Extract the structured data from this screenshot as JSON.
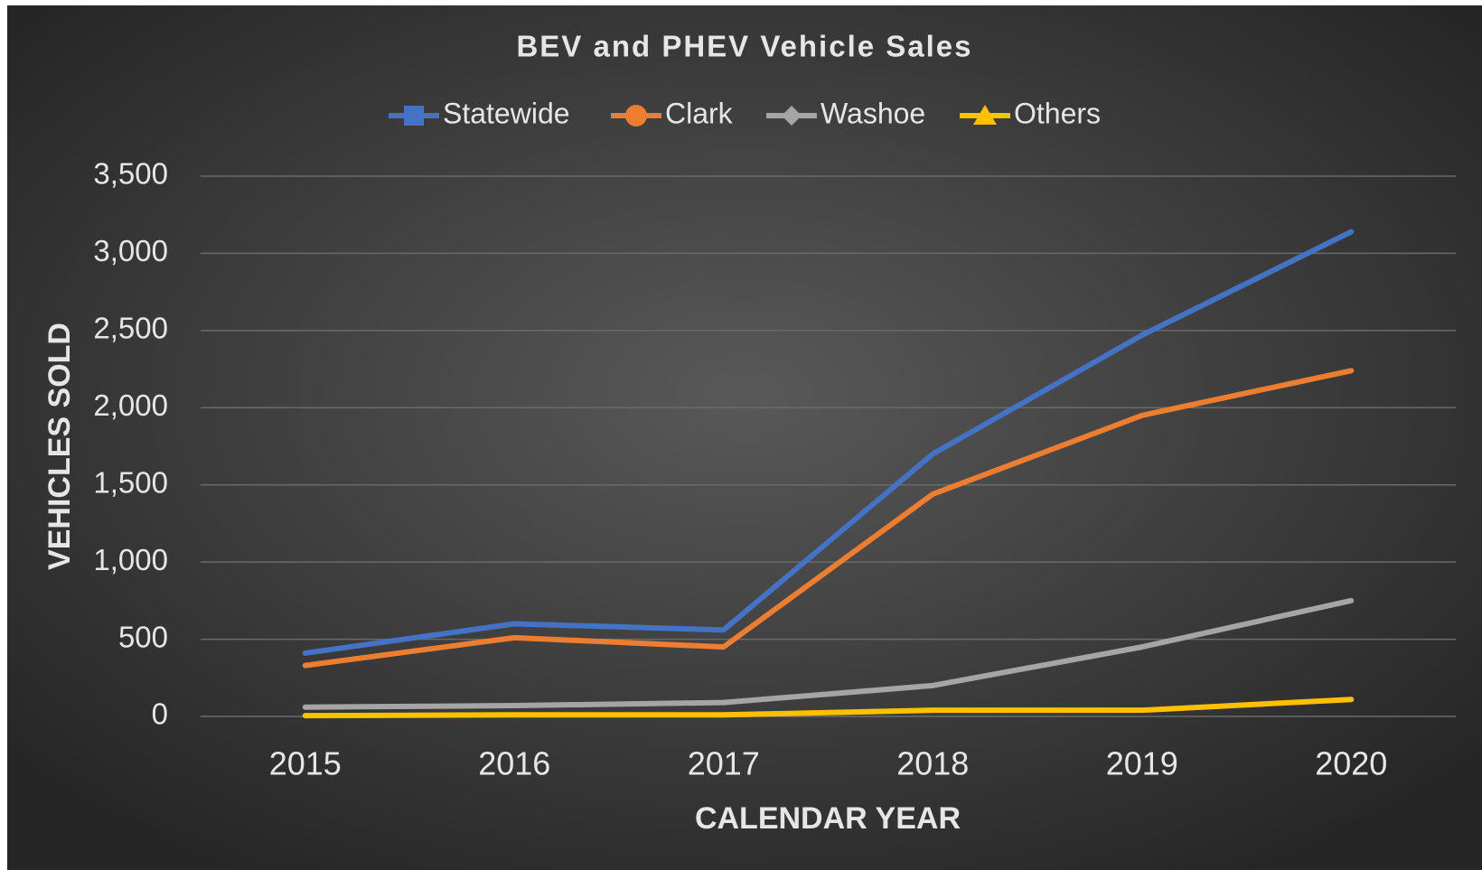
{
  "chart_data": {
    "type": "line",
    "title": "BEV and PHEV Vehicle Sales",
    "x_label": "CALENDAR YEAR",
    "y_label": "VEHICLES SOLD",
    "categories": [
      "2015",
      "2016",
      "2017",
      "2018",
      "2019",
      "2020"
    ],
    "series": [
      {
        "name": "Statewide",
        "color": "#4472c4",
        "marker": "square",
        "values": [
          410,
          600,
          560,
          1700,
          2470,
          3140
        ]
      },
      {
        "name": "Clark",
        "color": "#ed7d31",
        "marker": "circle",
        "values": [
          330,
          510,
          450,
          1440,
          1950,
          2240
        ]
      },
      {
        "name": "Washoe",
        "color": "#a5a5a5",
        "marker": "diamond",
        "values": [
          60,
          70,
          90,
          200,
          450,
          750
        ]
      },
      {
        "name": "Others",
        "color": "#ffc000",
        "marker": "triangle",
        "values": [
          5,
          10,
          10,
          40,
          40,
          110
        ]
      }
    ],
    "ylim": [
      0,
      3500
    ],
    "yticks": [
      0,
      500,
      {
        "value": 1000,
        "label": "1,000"
      },
      {
        "value": 1500,
        "label": "1,500"
      },
      {
        "value": 2000,
        "label": "2,000"
      },
      {
        "value": 2500,
        "label": "2,500"
      },
      {
        "value": 3000,
        "label": "3,000"
      },
      {
        "value": 3500,
        "label": "3,500"
      }
    ],
    "grid": true,
    "legend": "top"
  }
}
